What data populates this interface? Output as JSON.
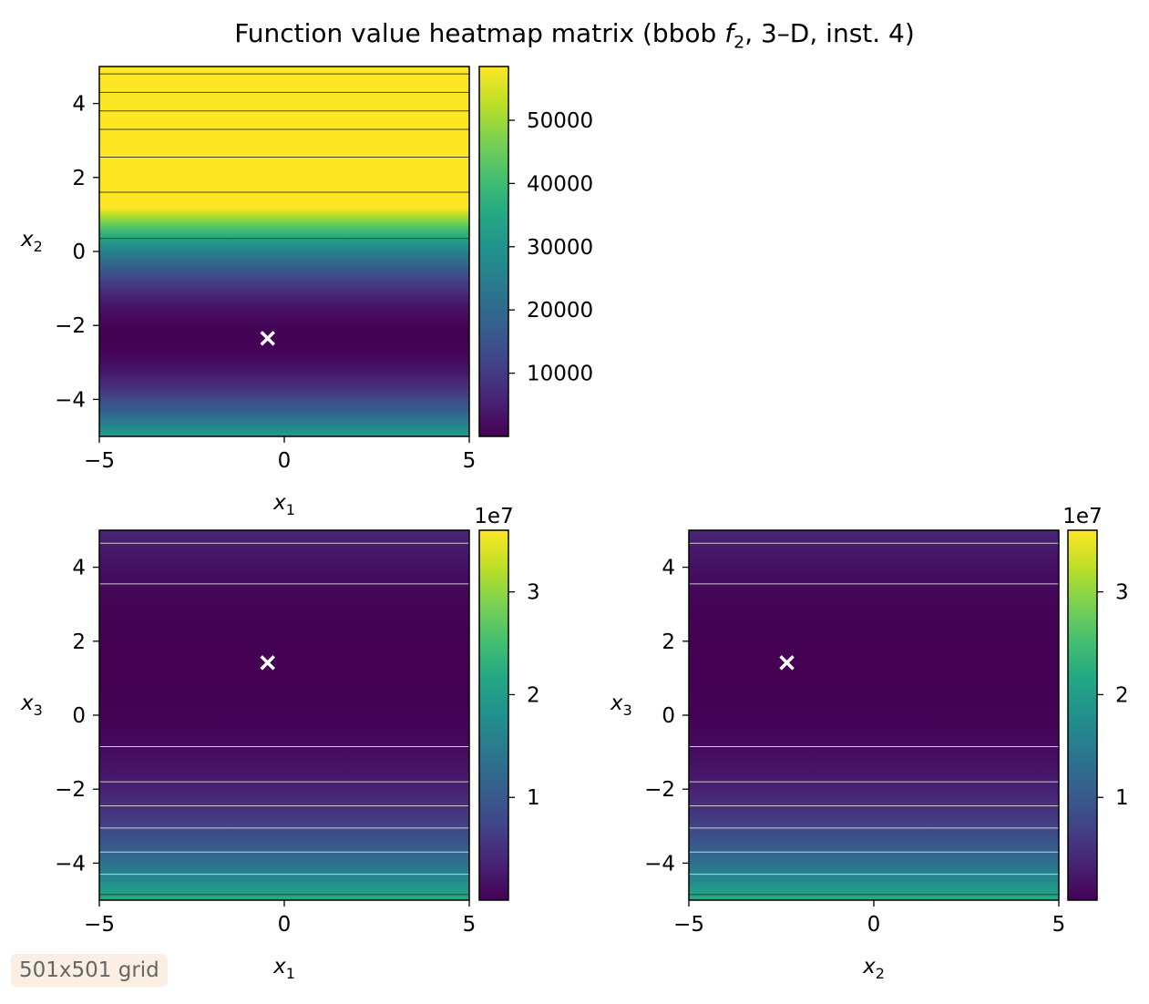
{
  "figure": {
    "title_prefix": "Function value heatmap matrix (bbob ",
    "title_func": "f",
    "title_sub": "2",
    "title_suffix": ", 3–D, inst. 4)",
    "note": "501x501 grid"
  },
  "chart_data": [
    {
      "type": "heatmap",
      "panel": "x1-x2",
      "xlabel_var": "x",
      "xlabel_sub": "1",
      "ylabel_var": "x",
      "ylabel_sub": "2",
      "xlim": [
        -5,
        5
      ],
      "ylim": [
        -5,
        5
      ],
      "xticks": [
        -5,
        0,
        5
      ],
      "yticks": [
        -4,
        -2,
        0,
        2,
        4
      ],
      "colormap": "viridis",
      "value_min": 0,
      "value_max": 58500,
      "colorbar_ticks": [
        10000,
        20000,
        30000,
        40000,
        50000
      ],
      "colorbar_labels": [
        "10000",
        "20000",
        "30000",
        "40000",
        "50000"
      ],
      "colorbar_offset": "",
      "profile": {
        "axis": "y",
        "center": -2.35,
        "scale": 4700,
        "power": 2,
        "offset": 0
      },
      "contour_levels": [
        0.35,
        1.6,
        2.55,
        3.3,
        3.8,
        4.3,
        4.8
      ],
      "marker": {
        "x": -0.45,
        "y": -2.35,
        "symbol": "x",
        "color": "#ffffff"
      }
    },
    {
      "type": "heatmap",
      "panel": "x1-x3",
      "xlabel_var": "x",
      "xlabel_sub": "1",
      "ylabel_var": "x",
      "ylabel_sub": "3",
      "xlim": [
        -5,
        5
      ],
      "ylim": [
        -5,
        5
      ],
      "xticks": [
        -5,
        0,
        5
      ],
      "yticks": [
        -4,
        -2,
        0,
        2,
        4
      ],
      "colormap": "viridis",
      "value_min": 0,
      "value_max": 36000000,
      "colorbar_ticks": [
        10000000,
        20000000,
        30000000
      ],
      "colorbar_labels": [
        "1",
        "2",
        "3"
      ],
      "colorbar_offset": "1e7",
      "profile": {
        "axis": "y",
        "center": 1.4,
        "scale": 85000,
        "power": 3,
        "offset": 0
      },
      "contour_levels": [
        4.65,
        3.55,
        -0.85,
        -1.8,
        -2.45,
        -3.05,
        -3.7,
        -4.3,
        -4.85
      ],
      "marker": {
        "x": -0.45,
        "y": 1.42,
        "symbol": "x",
        "color": "#ffffff"
      }
    },
    {
      "type": "heatmap",
      "panel": "x2-x3",
      "xlabel_var": "x",
      "xlabel_sub": "2",
      "ylabel_var": "x",
      "ylabel_sub": "3",
      "xlim": [
        -5,
        5
      ],
      "ylim": [
        -5,
        5
      ],
      "xticks": [
        -5,
        0,
        5
      ],
      "yticks": [
        -4,
        -2,
        0,
        2,
        4
      ],
      "colormap": "viridis",
      "value_min": 0,
      "value_max": 36000000,
      "colorbar_ticks": [
        10000000,
        20000000,
        30000000
      ],
      "colorbar_labels": [
        "1",
        "2",
        "3"
      ],
      "colorbar_offset": "1e7",
      "profile": {
        "axis": "y",
        "center": 1.4,
        "scale": 85000,
        "power": 3,
        "offset": 0
      },
      "contour_levels": [
        4.65,
        3.55,
        -0.85,
        -1.8,
        -2.45,
        -3.05,
        -3.7,
        -4.3,
        -4.85
      ],
      "marker": {
        "x": -2.35,
        "y": 1.42,
        "symbol": "x",
        "color": "#ffffff"
      }
    }
  ]
}
